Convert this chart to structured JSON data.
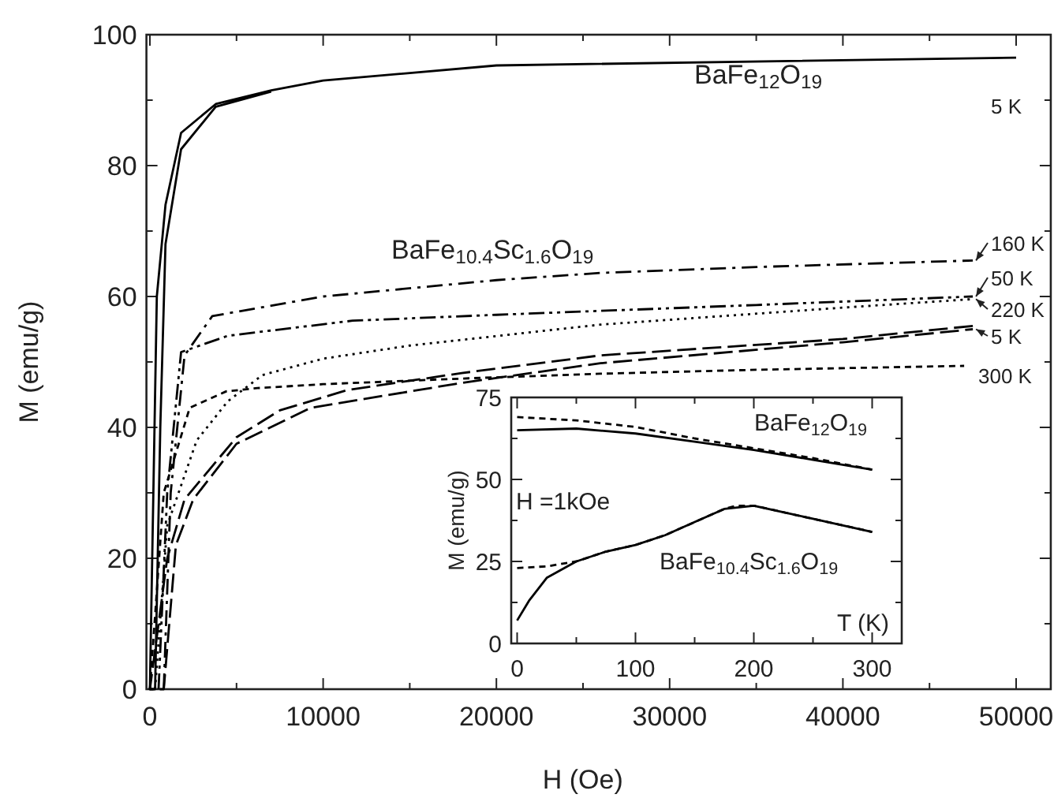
{
  "chart_data": [
    {
      "type": "line",
      "xlabel": "H (Oe)",
      "ylabel": "M (emu/g)",
      "xlim": [
        -200,
        52000
      ],
      "ylim": [
        0,
        100
      ],
      "xticks": [
        0,
        {
          "value": 5000,
          "label": null
        },
        10000,
        {
          "value": 15000,
          "label": null
        },
        20000,
        {
          "value": 25000,
          "label": null
        },
        30000,
        {
          "value": 35000,
          "label": null
        },
        40000,
        {
          "value": 45000,
          "label": null
        },
        50000
      ],
      "yticks": [
        0,
        {
          "value": 10,
          "label": null
        },
        20,
        {
          "value": 30,
          "label": null
        },
        40,
        {
          "value": 50,
          "label": null
        },
        60,
        {
          "value": 70,
          "label": null
        },
        80,
        {
          "value": 90,
          "label": null
        },
        100
      ],
      "legend": false,
      "grid": false,
      "annotations": [
        "BaFe$_{12}$O$_{19}$",
        "BaFe$_{10.4}$Sc$_{1.6}$O$_{19}$"
      ],
      "series": [
        {
          "name": "5 K",
          "color": "#000000",
          "line_style": "solid",
          "x": [
            50000,
            20000,
            10000,
            7000,
            3800,
            1800,
            900,
            400,
            0,
            300,
            600,
            900,
            1800,
            3800,
            7000
          ],
          "values": [
            96.5,
            95.3,
            93,
            91.5,
            89.4,
            85,
            74,
            60,
            0,
            0,
            40,
            68,
            82.5,
            89,
            91.3
          ]
        },
        {
          "name": "160 K",
          "color": "#000000",
          "line_style": "dashdot",
          "x": [
            800,
            1200,
            2000,
            3600,
            10000,
            20000,
            26000,
            35000,
            47500
          ],
          "values": [
            0,
            30,
            51,
            57,
            60,
            62.5,
            63.6,
            64.5,
            65.5
          ]
        },
        {
          "name": "50 K",
          "color": "#000000",
          "line_style": "dashdotdot",
          "x": [
            500,
            1000,
            1800,
            4500,
            11700,
            20000,
            26000,
            35000,
            47500
          ],
          "values": [
            0,
            30,
            51.5,
            54,
            56.3,
            57.2,
            57.8,
            58.7,
            60
          ]
        },
        {
          "name": "220 K",
          "color": "#000000",
          "line_style": "dotted",
          "x": [
            300,
            1000,
            2700,
            4500,
            6500,
            10000,
            15000,
            26000,
            40000,
            47500
          ],
          "values": [
            0,
            25,
            38,
            44,
            48,
            50.5,
            52.5,
            55.7,
            58.3,
            59.6
          ]
        },
        {
          "name": "5 K",
          "color": "#000000",
          "line_style": "longdashed",
          "x": [
            47500,
            40000,
            26000,
            18000,
            11400,
            7500,
            5000,
            2000,
            1000,
            0,
            800,
            1500,
            2500,
            5000,
            9300,
            18000,
            26000,
            40000,
            47500
          ],
          "values": [
            55.5,
            53.5,
            51,
            48.3,
            45.7,
            42.6,
            38.5,
            29,
            20,
            0,
            0,
            22,
            29,
            37.5,
            43,
            46.8,
            49.8,
            53,
            55
          ]
        },
        {
          "name": "300 K",
          "color": "#000000",
          "line_style": "dashed",
          "x": [
            0,
            800,
            2300,
            4400,
            6200,
            10000,
            18400,
            26000,
            35000,
            47000
          ],
          "values": [
            0,
            30,
            43,
            45.5,
            46,
            46.6,
            47.5,
            48.2,
            48.8,
            49.4
          ]
        }
      ]
    },
    {
      "type": "line",
      "xlabel": "T (K)",
      "ylabel": "M (emu/g)",
      "xlim": [
        -5,
        325
      ],
      "ylim": [
        0,
        75
      ],
      "xticks": [
        0,
        {
          "value": 50,
          "label": null
        },
        100,
        {
          "value": 150,
          "label": null
        },
        200,
        {
          "value": 250,
          "label": null
        },
        300
      ],
      "yticks": [
        0,
        {
          "value": 12.5,
          "label": null
        },
        25,
        {
          "value": 37.5,
          "label": null
        },
        50,
        {
          "value": 62.5,
          "label": null
        },
        75
      ],
      "legend": false,
      "grid": false,
      "annotations": [
        "BaFe$_{12}$O$_{19}$",
        "H =1kOe",
        "BaFe$_{10.4}$Sc$_{1.6}$O$_{19}$"
      ],
      "series": [
        {
          "color": "#000000",
          "line_style": "solid",
          "x": [
            0,
            50,
            100,
            150,
            200,
            250,
            300
          ],
          "values": [
            65,
            65.5,
            64,
            61.5,
            59,
            56,
            53
          ]
        },
        {
          "color": "#000000",
          "line_style": "dashed",
          "x": [
            0,
            50,
            100,
            150,
            200,
            250,
            300
          ],
          "values": [
            69,
            68,
            66,
            62.5,
            59.5,
            56.5,
            53
          ]
        },
        {
          "color": "#000000",
          "line_style": "solid",
          "x": [
            0,
            10,
            25,
            50,
            75,
            100,
            125,
            150,
            175,
            200,
            225,
            250,
            300
          ],
          "values": [
            7,
            13,
            20,
            25,
            28,
            30,
            33,
            37,
            41,
            42,
            40,
            38,
            34
          ]
        },
        {
          "color": "#000000",
          "line_style": "dashed",
          "x": [
            0,
            25,
            50,
            75,
            100,
            125,
            150,
            175,
            185,
            200,
            225,
            250,
            300
          ],
          "values": [
            23,
            23.5,
            25,
            28,
            30,
            33,
            37,
            41,
            42,
            42,
            40,
            38,
            34
          ]
        }
      ]
    }
  ]
}
